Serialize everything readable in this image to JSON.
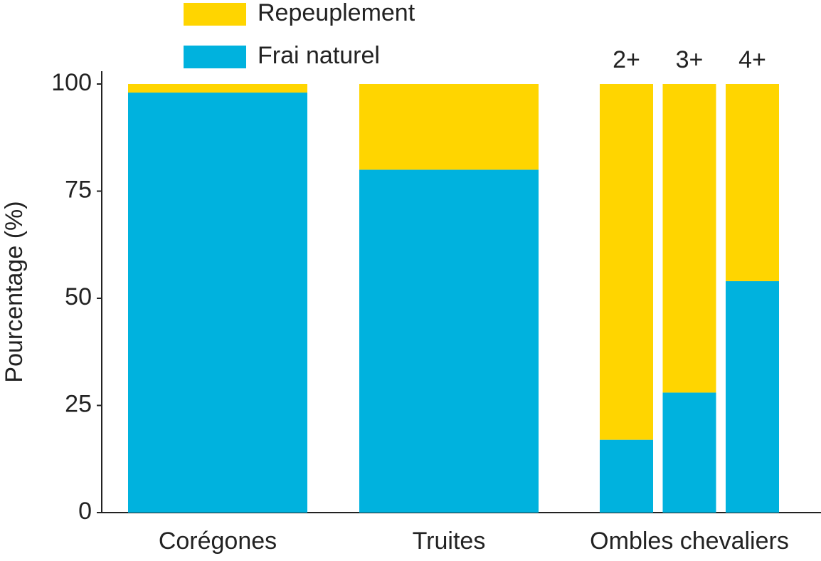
{
  "chart_data": {
    "type": "stacked_bar",
    "ylabel": "Pourcentage (%)",
    "categories": [
      {
        "name": "Corégones"
      },
      {
        "name": "Truites"
      },
      {
        "name": "Ombles chevaliers",
        "subcategories": [
          "2+",
          "3+",
          "4+"
        ]
      }
    ],
    "series": [
      {
        "name": "Repeuplement",
        "color": "#ffd500",
        "values": [
          2,
          20,
          [
            83,
            72,
            46
          ]
        ]
      },
      {
        "name": "Frai naturel",
        "color": "#00b2de",
        "values": [
          98,
          80,
          [
            17,
            28,
            54
          ]
        ]
      }
    ],
    "ylim": [
      0,
      100
    ],
    "yticks": [
      0,
      25,
      50,
      75,
      100
    ],
    "grid": false
  }
}
